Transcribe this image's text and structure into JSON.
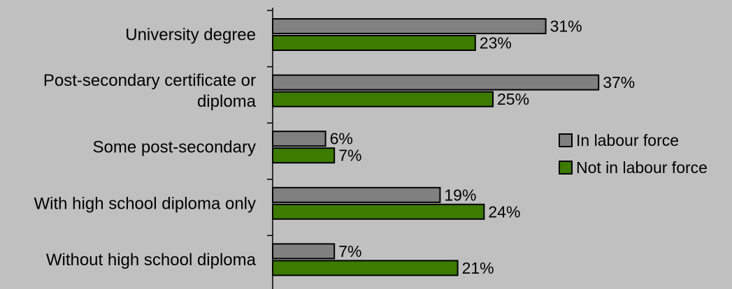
{
  "chart_data": {
    "type": "bar",
    "orientation": "horizontal",
    "categories": [
      "University degree",
      "Post-secondary certificate or diploma",
      "Some post-secondary",
      "With high school diploma only",
      "Without high school diploma"
    ],
    "category_lines": [
      [
        "University degree"
      ],
      [
        "Post-secondary certificate or",
        "diploma"
      ],
      [
        "Some post-secondary"
      ],
      [
        "With high school diploma only"
      ],
      [
        "Without high school diploma"
      ]
    ],
    "series": [
      {
        "name": "In labour force",
        "color": "#808080",
        "values": [
          31,
          37,
          6,
          19,
          7
        ],
        "labels": [
          "31%",
          "37%",
          "6%",
          "19%",
          "7%"
        ]
      },
      {
        "name": "Not in labour force",
        "color": "#3d7a00",
        "values": [
          23,
          25,
          7,
          24,
          21
        ],
        "labels": [
          "23%",
          "25%",
          "7%",
          "24%",
          "21%"
        ]
      }
    ],
    "xlim": [
      0,
      50
    ],
    "unit": "%",
    "grid": false,
    "legend_position": "right"
  }
}
